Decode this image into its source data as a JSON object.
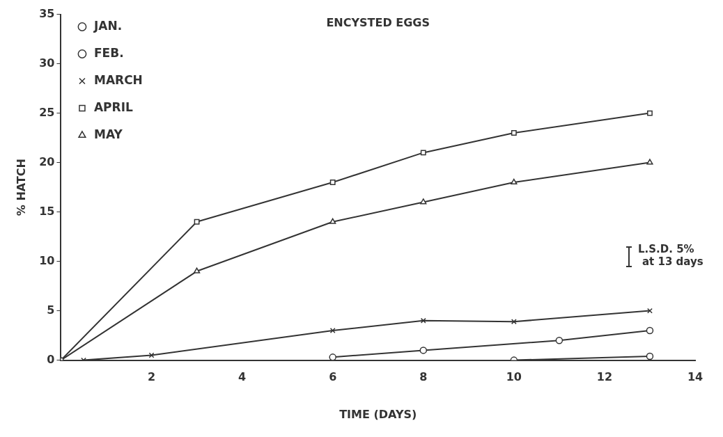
{
  "chart_data": {
    "type": "line",
    "title": "ENCYSTED EGGS",
    "xlabel": "TIME (DAYS)",
    "ylabel": "% HATCH",
    "xlim": [
      0,
      14
    ],
    "xticks": [
      2,
      4,
      6,
      8,
      10,
      12,
      14
    ],
    "ylim": [
      0,
      35
    ],
    "yticks": [
      0,
      5,
      10,
      15,
      20,
      25,
      30,
      35
    ],
    "grid": false,
    "legend": "top left",
    "line_style": "solid",
    "series": [
      {
        "name": "JAN.",
        "color": "#333333",
        "marker": "circle",
        "x": [
          10,
          13
        ],
        "values": [
          0,
          0.4
        ]
      },
      {
        "name": "FEB.",
        "color": "#333333",
        "marker": "circle",
        "x": [
          6,
          8,
          11,
          13
        ],
        "values": [
          0.3,
          1,
          2,
          3
        ]
      },
      {
        "name": "MARCH",
        "color": "#333333",
        "marker": "cross",
        "x": [
          0.5,
          2,
          6,
          8,
          10,
          13
        ],
        "values": [
          0,
          0.5,
          3,
          4,
          3.9,
          5
        ]
      },
      {
        "name": "APRIL",
        "color": "#333333",
        "marker": "square",
        "x": [
          0,
          3,
          6,
          8,
          10,
          13
        ],
        "values": [
          0,
          14,
          18,
          21,
          23,
          25
        ]
      },
      {
        "name": "MAY",
        "color": "#333333",
        "marker": "triangle",
        "x": [
          0,
          3,
          6,
          8,
          10,
          13
        ],
        "values": [
          0,
          9,
          14,
          16,
          18,
          20
        ]
      }
    ],
    "annotations": [
      "L.S.D. 5%\nat 13 days"
    ]
  }
}
